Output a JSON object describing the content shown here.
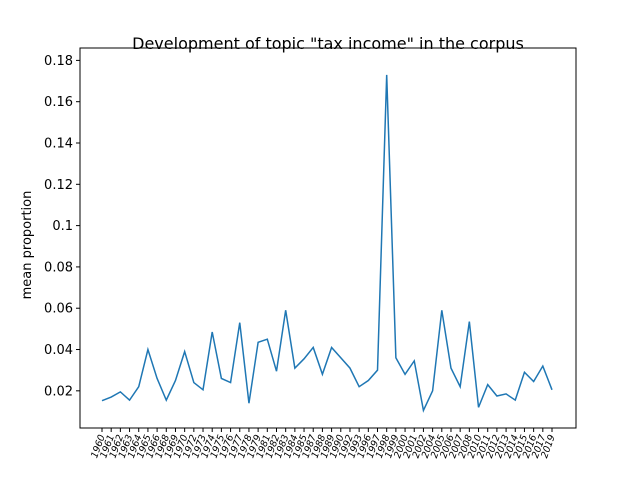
{
  "chart_data": {
    "type": "line",
    "title": "Development of topic \"tax income\" in the corpus",
    "y_label": "mean proportion",
    "categories": [
      "1960",
      "1961",
      "1962",
      "1963",
      "1964",
      "1965",
      "1966",
      "1968",
      "1969",
      "1970",
      "1972",
      "1973",
      "1974",
      "1975",
      "1976",
      "1977",
      "1978",
      "1979",
      "1981",
      "1982",
      "1983",
      "1984",
      "1985",
      "1987",
      "1988",
      "1989",
      "1990",
      "1992",
      "1993",
      "1996",
      "1997",
      "1998",
      "1999",
      "2000",
      "2001",
      "2002",
      "2004",
      "2005",
      "2006",
      "2007",
      "2008",
      "2010",
      "2011",
      "2012",
      "2013",
      "2014",
      "2015",
      "2016",
      "2017",
      "2019"
    ],
    "series": [
      {
        "name": "mean proportion",
        "color": "#1f77b4",
        "values": [
          0.0152,
          0.017,
          0.0195,
          0.0155,
          0.022,
          0.04,
          0.026,
          0.0155,
          0.025,
          0.039,
          0.024,
          0.0205,
          0.0485,
          0.026,
          0.024,
          0.053,
          0.014,
          0.0435,
          0.045,
          0.0295,
          0.059,
          0.031,
          0.0355,
          0.041,
          0.028,
          0.041,
          0.036,
          0.031,
          0.022,
          0.025,
          0.03,
          0.173,
          0.036,
          0.028,
          0.0345,
          0.0105,
          0.02,
          0.059,
          0.031,
          0.022,
          0.0535,
          0.012,
          0.023,
          0.0175,
          0.0185,
          0.0155,
          0.029,
          0.0245,
          0.032,
          0.0205
        ]
      }
    ],
    "ylim": [
      0.002,
      0.186
    ],
    "yticks": [
      0.02,
      0.04,
      0.06,
      0.08,
      0.1,
      0.12,
      0.14,
      0.16,
      0.18
    ]
  }
}
